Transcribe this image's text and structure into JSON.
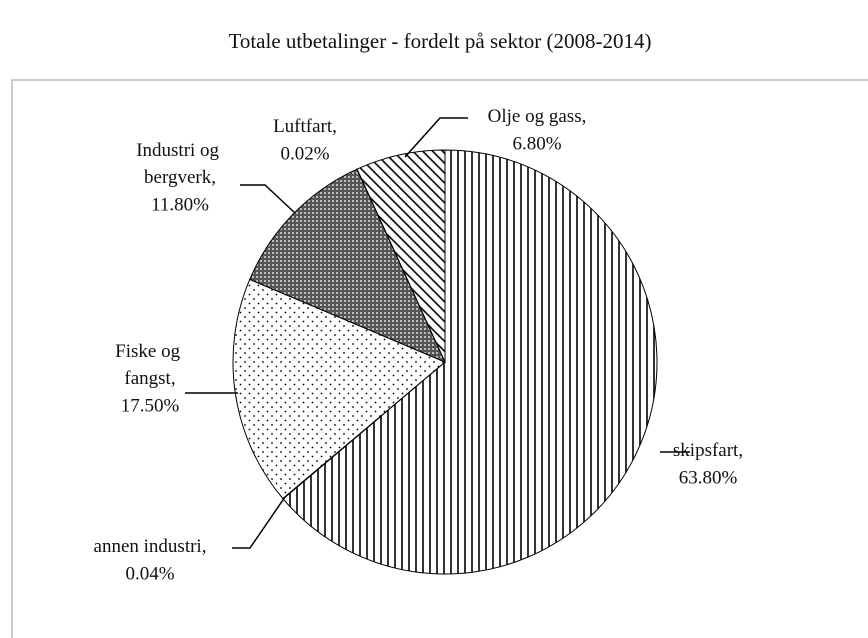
{
  "chart_data": {
    "type": "pie",
    "title": "Totale utbetalinger - fordelt på sektor (2008-2014)",
    "categories": [
      "skipsfart,",
      "annen industri,",
      "Fiske og fangst,",
      "Industri og bergverk,",
      "Luftfart,",
      "Olje og gass,"
    ],
    "values": [
      63.8,
      0.04,
      17.5,
      11.8,
      0.02,
      6.8
    ],
    "value_labels": [
      "63.80%",
      "0.04%",
      "17.50%",
      "11.80%",
      "0.02%",
      "6.80%"
    ]
  }
}
